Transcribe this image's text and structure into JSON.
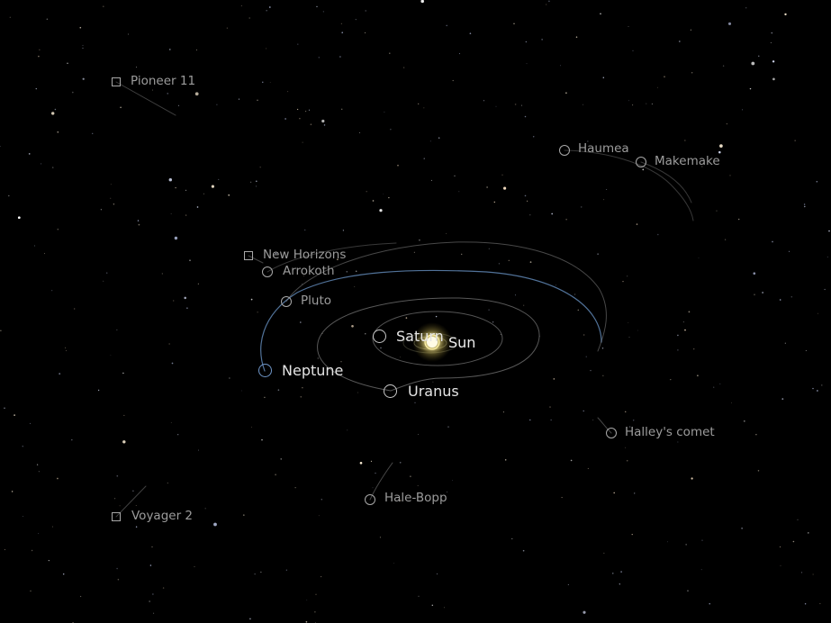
{
  "view": {
    "background": "#000000",
    "orbit_color": "#9a9a9a",
    "neptune_orbit_color": "#5f86b4",
    "marker_color": "#a8a8a8",
    "major_marker_color": "#c8c8c8",
    "neptune_marker_color": "#6f96c8",
    "sun_color": "#fff2a8"
  },
  "sun": {
    "label": "Sun",
    "icon": "sun-icon"
  },
  "planets": {
    "saturn": {
      "label": "Saturn",
      "icon": "circle-marker-icon"
    },
    "uranus": {
      "label": "Uranus",
      "icon": "circle-marker-icon"
    },
    "neptune": {
      "label": "Neptune",
      "icon": "circle-marker-icon"
    }
  },
  "minor_bodies": {
    "pluto": {
      "label": "Pluto",
      "icon": "circle-marker-icon"
    },
    "arrokoth": {
      "label": "Arrokoth",
      "icon": "circle-marker-icon"
    },
    "haumea": {
      "label": "Haumea",
      "icon": "circle-marker-icon"
    },
    "makemake": {
      "label": "Makemake",
      "icon": "circle-marker-icon"
    },
    "halley": {
      "label": "Halley's comet",
      "icon": "circle-marker-icon"
    },
    "halebopp": {
      "label": "Hale-Bopp",
      "icon": "circle-marker-icon"
    }
  },
  "spacecraft": {
    "pioneer11": {
      "label": "Pioneer 11",
      "icon": "square-marker-icon"
    },
    "newhorizons": {
      "label": "New Horizons",
      "icon": "square-marker-icon"
    },
    "voyager2": {
      "label": "Voyager 2",
      "icon": "square-marker-icon"
    }
  }
}
